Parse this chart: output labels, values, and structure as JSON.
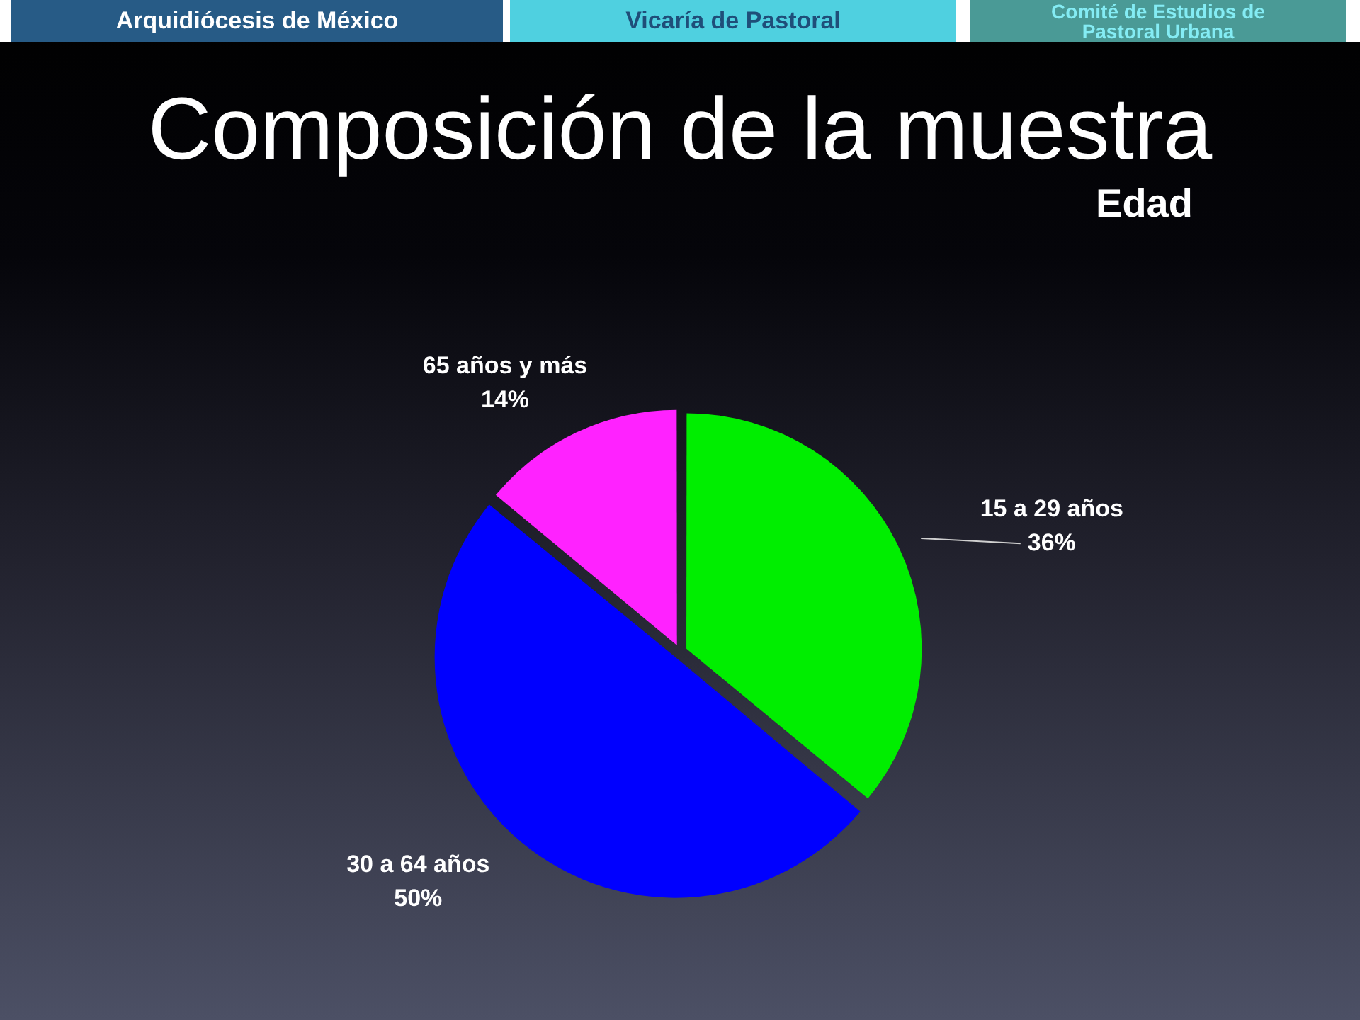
{
  "chart_data": {
    "type": "pie",
    "title": "Composición de la muestra",
    "subtitle": "Edad",
    "categories": [
      "15 a 29 años",
      "30 a 64 años",
      "65 años y más"
    ],
    "values": [
      36,
      50,
      14
    ],
    "colors": [
      "#00ee00",
      "#0000ff",
      "#ff22ff"
    ],
    "value_labels": [
      "36%",
      "50%",
      "14%"
    ],
    "annotations": [
      "Arquidiócesis de México",
      "Vicaría de Pastoral",
      "Comité de Estudios de Pastoral Urbana"
    ]
  }
}
